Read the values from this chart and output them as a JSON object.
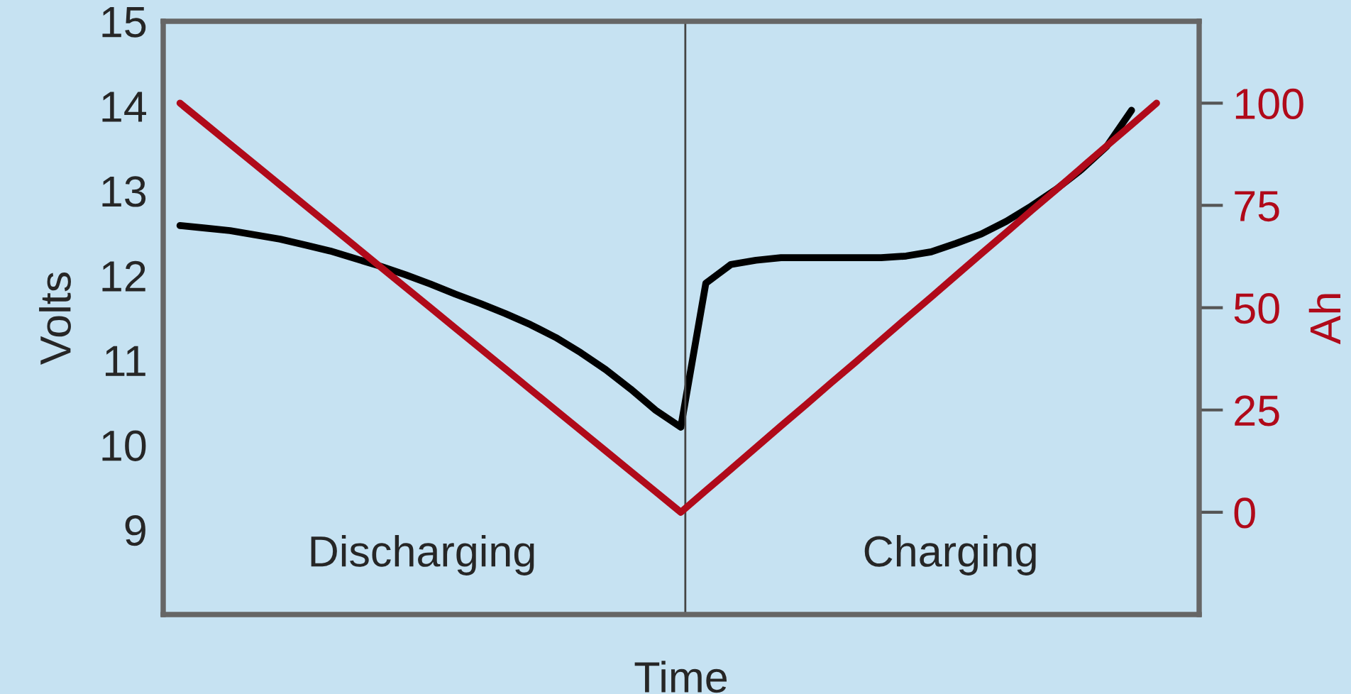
{
  "chart_data": {
    "type": "line",
    "xlabel": "Time",
    "ylabel": "Volts",
    "y2label": "Ah",
    "categories": [
      null,
      null,
      null,
      null,
      null,
      null,
      null,
      null,
      null,
      null,
      null,
      null,
      null,
      null,
      null,
      null,
      null,
      null,
      null,
      null,
      null,
      null,
      null,
      null,
      null,
      null,
      null,
      null,
      null,
      null,
      null,
      null,
      null,
      null,
      null,
      null,
      null,
      null,
      null,
      null
    ],
    "ylim": [
      8,
      15
    ],
    "yticks": [
      9,
      10,
      11,
      12,
      13,
      14,
      15
    ],
    "y2lim": [
      -25,
      120
    ],
    "y2ticks": [
      0,
      25,
      50,
      75,
      100
    ],
    "grid": false,
    "legend": false,
    "marker": "none",
    "line_style": "solid",
    "series": [
      {
        "color": "#000000",
        "values": [
          12.59,
          12.56,
          12.53,
          12.48,
          12.43,
          12.36,
          12.29,
          12.2,
          12.11,
          12.01,
          11.9,
          11.78,
          11.67,
          11.55,
          11.42,
          11.27,
          11.09,
          10.89,
          10.66,
          10.41,
          10.21,
          11.91,
          12.13,
          12.18,
          12.21,
          12.21,
          12.21,
          12.21,
          12.21,
          12.23,
          12.28,
          12.38,
          12.49,
          12.64,
          12.82,
          13.02,
          13.25,
          13.52,
          13.95,
          null
        ]
      },
      {
        "color": "#b00a1a",
        "axis": "y2",
        "values": [
          100,
          95,
          90,
          85,
          80,
          75,
          70,
          65,
          60,
          55,
          50,
          45,
          40,
          35,
          30,
          25,
          20,
          15,
          10,
          5,
          0,
          5.3,
          10.5,
          15.8,
          21.1,
          26.3,
          31.6,
          36.8,
          42.1,
          47.4,
          52.6,
          57.9,
          63.2,
          68.4,
          73.7,
          78.9,
          84.2,
          89.5,
          94.7,
          100
        ]
      }
    ],
    "annotations": [
      "Discharging",
      "Charging"
    ]
  }
}
